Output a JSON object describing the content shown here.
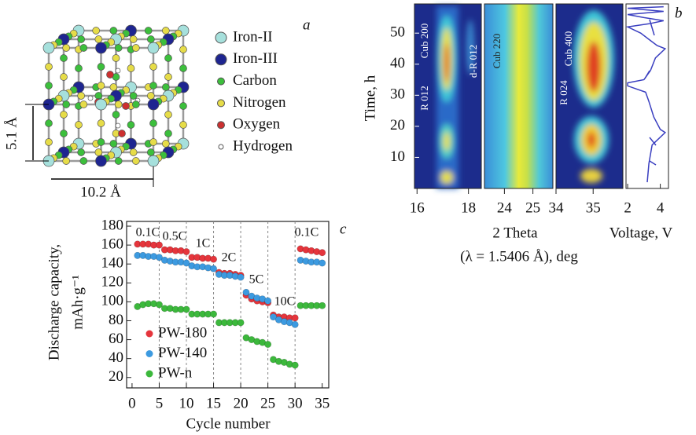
{
  "panel_a": {
    "label": "a",
    "legend": [
      "Iron-II",
      "Iron-III",
      "Carbon",
      "Nitrogen",
      "Oxygen",
      "Hydrogen"
    ],
    "height_label": "5.1 Å",
    "width_label": "10.2 Å"
  },
  "chart_data": [
    {
      "type": "heatmap",
      "label": "b",
      "ylabel": "Time, h",
      "ylim": [
        0,
        59.4
      ],
      "yticks": [
        10,
        20,
        30,
        40,
        50
      ],
      "xlabel": [
        "2 Theta",
        "(λ = 1.5406 Å), deg"
      ],
      "panels": [
        {
          "xlim": [
            15.9,
            18.5
          ],
          "xticks": [
            16,
            18
          ],
          "annotations": [
            "Cub 200",
            "R 012",
            "d-R 012"
          ]
        },
        {
          "xlim": [
            23.3,
            25.7
          ],
          "xticks": [
            24,
            25
          ],
          "annotations": [
            "Cub 220"
          ]
        },
        {
          "xlim": [
            34,
            35.8
          ],
          "xticks": [
            34,
            35
          ],
          "annotations": [
            "R 024",
            "Cub 400"
          ]
        }
      ],
      "voltage": {
        "type": "line",
        "xlabel": "Voltage, V",
        "xlim": [
          1.9,
          4.5
        ],
        "xticks": [
          2,
          4
        ],
        "color": "#3a3fc0",
        "values": [
          3.2,
          3.3,
          3.5,
          4.1,
          4.3,
          4.0,
          3.6,
          3.3,
          3.1,
          2.0,
          2.0,
          3.0,
          3.4,
          3.7,
          4.1,
          4.3,
          3.8,
          3.3,
          2.8,
          2.0,
          3.3,
          4.2,
          3.0,
          2.0,
          4.2,
          2.0,
          4.2
        ],
        "time": [
          2,
          8,
          14,
          17,
          18,
          19,
          23,
          28,
          31,
          33,
          34,
          35,
          38,
          42,
          44,
          45,
          46,
          48,
          50,
          52,
          53,
          54,
          55,
          56,
          57,
          58,
          58.5
        ]
      }
    },
    {
      "type": "scatter",
      "label": "c",
      "xlabel": "Cycle number",
      "ylabel": [
        "Discharge capacity,",
        "mAh·g⁻¹"
      ],
      "x": [
        1,
        2,
        3,
        4,
        5,
        6,
        7,
        8,
        9,
        10,
        11,
        12,
        13,
        14,
        15,
        16,
        17,
        18,
        19,
        20,
        21,
        22,
        23,
        24,
        25,
        26,
        27,
        28,
        29,
        30,
        31,
        32,
        33,
        34,
        35
      ],
      "xlim": [
        -1,
        36.2
      ],
      "xticks": [
        0,
        5,
        10,
        15,
        20,
        25,
        30,
        35
      ],
      "ylim": [
        9,
        185
      ],
      "yticks": [
        20,
        40,
        60,
        80,
        100,
        120,
        140,
        160,
        180
      ],
      "vlines": [
        5,
        10,
        15,
        20,
        25,
        30
      ],
      "annotations": [
        "0.1C",
        "0.5C",
        "1C",
        "2C",
        "5C",
        "10C",
        "0.1C"
      ],
      "series": [
        {
          "name": "PW-180",
          "color": "#e5353c",
          "values": [
            161,
            161,
            161,
            160,
            160,
            155,
            155,
            154,
            154,
            153,
            147,
            147,
            146,
            146,
            145,
            131,
            130,
            130,
            129,
            128,
            107,
            103,
            101,
            100,
            99,
            86,
            84,
            84,
            83,
            83,
            156,
            155,
            154,
            153,
            152
          ]
        },
        {
          "name": "PW-140",
          "color": "#3c9ae0",
          "values": [
            149,
            149,
            148,
            148,
            147,
            144,
            143,
            142,
            142,
            141,
            138,
            137,
            137,
            136,
            135,
            129,
            128,
            128,
            127,
            126,
            110,
            106,
            104,
            103,
            101,
            84,
            81,
            79,
            78,
            76,
            144,
            143,
            142,
            142,
            141
          ]
        },
        {
          "name": "PW-n",
          "color": "#3cb83c",
          "values": [
            95,
            97,
            98,
            98,
            97,
            93,
            93,
            92,
            92,
            92,
            87,
            87,
            87,
            87,
            87,
            78,
            78,
            78,
            78,
            78,
            62,
            60,
            58,
            57,
            55,
            39,
            37,
            36,
            34,
            33,
            96,
            96,
            96,
            96,
            96
          ]
        }
      ]
    }
  ]
}
